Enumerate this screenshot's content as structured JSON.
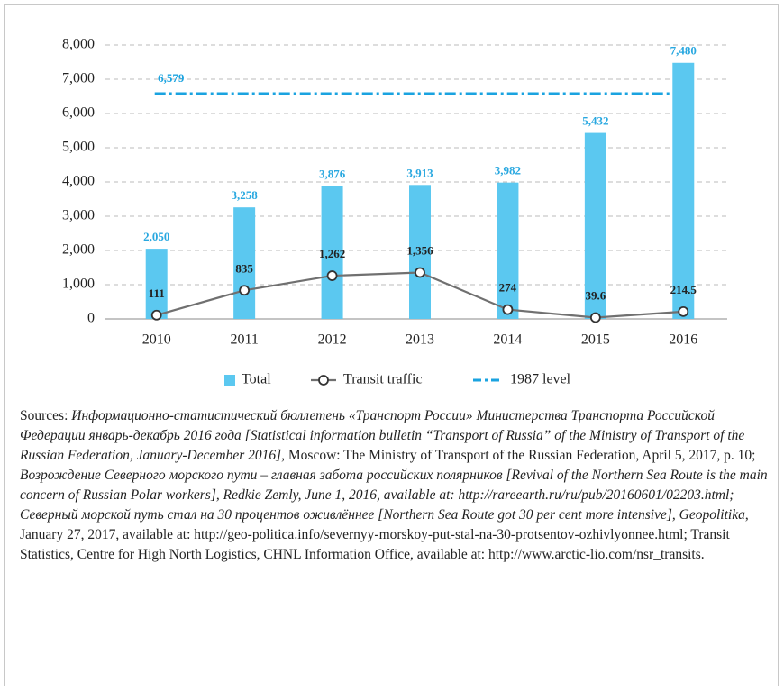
{
  "chart_data": {
    "type": "bar",
    "categories": [
      "2010",
      "2011",
      "2012",
      "2013",
      "2014",
      "2015",
      "2016"
    ],
    "series": [
      {
        "name": "Total",
        "type": "bar",
        "color": "#5bc8f0",
        "values": [
          2050,
          3258,
          3876,
          3913,
          3982,
          5432,
          7480
        ],
        "value_labels": [
          "2,050",
          "3,258",
          "3,876",
          "3,913",
          "3,982",
          "5,432",
          "7,480"
        ]
      },
      {
        "name": "Transit traffic",
        "type": "line",
        "color": "#707070",
        "values": [
          111,
          835,
          1262,
          1356,
          274,
          39.6,
          214.5
        ],
        "value_labels": [
          "111",
          "835",
          "1,262",
          "1,356",
          "274",
          "39.6",
          "214.5"
        ]
      }
    ],
    "reference": {
      "name": "1987 level",
      "value": 6579,
      "value_label": "6,579",
      "color": "#1aa3e0"
    },
    "ylim": [
      0,
      8000
    ],
    "yticks": [
      0,
      {
        "value": 1000,
        "label": "1,000"
      },
      {
        "value": 2000,
        "label": "2,000"
      },
      {
        "value": 3000,
        "label": "3,000"
      },
      {
        "value": 4000,
        "label": "4,000"
      },
      {
        "value": 5000,
        "label": "5,000"
      },
      {
        "value": 6000,
        "label": "6,000"
      },
      {
        "value": 7000,
        "label": "7,000"
      },
      {
        "value": 8000,
        "label": "8,000"
      }
    ],
    "grid": true
  },
  "sources": [
    {
      "text": "Sources: ",
      "italic": false
    },
    {
      "text": "Информационно-статистический бюллетень «Транспорт России» Министерства Транспорта Российской Федерации январь-декабрь 2016 года [Statistical information bulletin “Transport of Russia” of the Ministry of Transport of the Russian Federation, January-December 2016]",
      "italic": true
    },
    {
      "text": ", Moscow: The Ministry of Transport of the Russian Federation, April 5, 2017, p. 10; ",
      "italic": false
    },
    {
      "text": "Возрождение Северного морского пути – главная забота российских полярников [Revival of the Northern Sea Route is the main concern of Russian Polar workers], Redkie Zemly, June 1, 2016, available at: http://rareearth.ru/ru/pub/20160601/02203.html; Северный морской путь стал на 30 процентов оживлённее [Northern Sea Route got 30 per cent more intensive], Geopolitika",
      "italic": true
    },
    {
      "text": ", January 27, 2017, available at: http://geo-politica.info/severnyy-morskoy-put-stal-na-30-protsentov-ozhivlyonnee.html; Transit Statistics, Centre for High North Logistics, CHNL Information Office, available at: http://www.arctic-lio.com/nsr_transits.",
      "italic": false
    }
  ]
}
